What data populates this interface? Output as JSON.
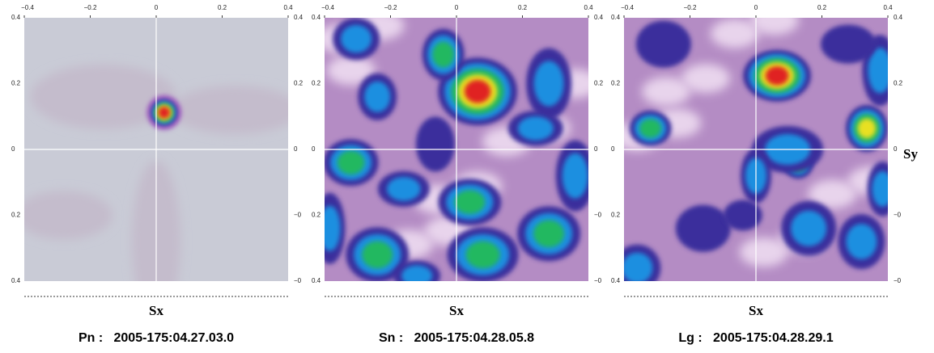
{
  "panels": [
    {
      "top_ticks": [
        "−0.4",
        "−0.2",
        "0",
        "0.2",
        "0.4"
      ],
      "left_ticks": [
        "0.4",
        "0.2",
        "0",
        "0.2",
        "0.4"
      ],
      "right_ticks": [
        "0.4",
        "0.2",
        "0",
        "−0",
        "−0"
      ],
      "xlabel": "Sx",
      "caption": "Pn :   2005-175:04.27.03.0"
    },
    {
      "top_ticks": [
        "−0.4",
        "−0.2",
        "0",
        "0.2",
        "0.4"
      ],
      "left_ticks": [
        "0.4",
        "0.2",
        "0",
        "0.2",
        "0.4"
      ],
      "right_ticks": [
        "0.4",
        "0.2",
        "0",
        "−0",
        "−0"
      ],
      "xlabel": "Sx",
      "caption": "Sn :   2005-175:04.28.05.8"
    },
    {
      "top_ticks": [
        "−0.4",
        "−0.2",
        "0",
        "0.2",
        "0.4"
      ],
      "left_ticks": [
        "0.4",
        "0.2",
        "0",
        "0.2",
        "0.4"
      ],
      "right_ticks": [
        "0.4",
        "0.2",
        "0",
        "−0",
        "−0"
      ],
      "xlabel": "Sx",
      "caption": "Lg :   2005-175:04.28.29.1"
    }
  ],
  "ylabel": "Sy"
}
